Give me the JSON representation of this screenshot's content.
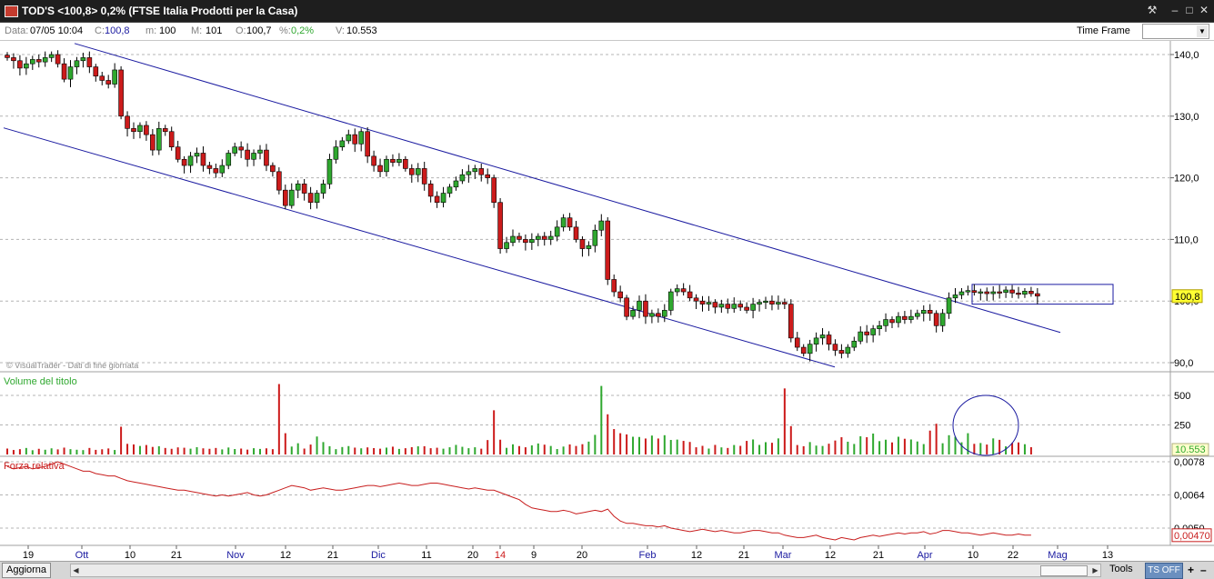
{
  "window": {
    "title": "TOD'S <100,8> 0,2%  (FTSE Italia Prodotti per la Casa)",
    "buttons": {
      "tools": "⚒",
      "minimize": "–",
      "restore": "□",
      "close": "✕"
    }
  },
  "infobar": {
    "data_label": "Data:",
    "data_value": "07/05 10:04",
    "c_label": "C:",
    "c_value": "100,8",
    "m_label": "m:",
    "m_value": "100",
    "M_label": "M:",
    "M_value": "101",
    "o_label": "O:",
    "o_value": "100,7",
    "pct_label": "%:",
    "pct_value": "0,2%",
    "v_label": "V:",
    "v_value": "10.553",
    "timeframe_label": "Time Frame",
    "timeframe_value": ""
  },
  "colors": {
    "up": "#2fa82f",
    "down": "#cc1b1b",
    "channel": "#1a1aa0",
    "price_tag_bg": "#ffff33",
    "volume_tag_bg": "#ffffcc",
    "strength": "#c81e1e"
  },
  "bottombar": {
    "update_button": "Aggiorna",
    "tools_label": "Tools",
    "ts_button": "TS OFF",
    "zoom_in": "+",
    "zoom_out": "–"
  },
  "chart_data": [
    {
      "type": "candlestick",
      "title": "",
      "y_axis_labels": [
        "140,0",
        "130,0",
        "120,0",
        "110,0",
        "100,0",
        "90,0"
      ],
      "ylim": [
        88,
        142
      ],
      "last_price_tag": "100,8",
      "watermark": "VisualTrader - Dati di fine giornata",
      "x_axis_labels": [
        {
          "label": "19",
          "month": false,
          "highlight": false
        },
        {
          "label": "Ott",
          "month": true,
          "highlight": false
        },
        {
          "label": "10",
          "month": false,
          "highlight": false
        },
        {
          "label": "21",
          "month": false,
          "highlight": false
        },
        {
          "label": "Nov",
          "month": true,
          "highlight": false
        },
        {
          "label": "12",
          "month": false,
          "highlight": false
        },
        {
          "label": "21",
          "month": false,
          "highlight": false
        },
        {
          "label": "Dic",
          "month": true,
          "highlight": false
        },
        {
          "label": "11",
          "month": false,
          "highlight": false
        },
        {
          "label": "20",
          "month": false,
          "highlight": false
        },
        {
          "label": "14",
          "month": false,
          "highlight": true
        },
        {
          "label": "9",
          "month": false,
          "highlight": false
        },
        {
          "label": "20",
          "month": false,
          "highlight": false
        },
        {
          "label": "Feb",
          "month": true,
          "highlight": false
        },
        {
          "label": "12",
          "month": false,
          "highlight": false
        },
        {
          "label": "21",
          "month": false,
          "highlight": false
        },
        {
          "label": "Mar",
          "month": true,
          "highlight": false
        },
        {
          "label": "12",
          "month": false,
          "highlight": false
        },
        {
          "label": "21",
          "month": false,
          "highlight": false
        },
        {
          "label": "Apr",
          "month": true,
          "highlight": false
        },
        {
          "label": "10",
          "month": false,
          "highlight": false
        },
        {
          "label": "22",
          "month": false,
          "highlight": false
        },
        {
          "label": "Mag",
          "month": true,
          "highlight": false
        },
        {
          "label": "13",
          "month": false,
          "highlight": false
        }
      ],
      "closes": [
        139.5,
        139,
        137.8,
        138.5,
        139.2,
        138.8,
        139.5,
        140,
        138.5,
        136,
        138,
        139,
        139.5,
        138,
        136.5,
        135.8,
        135.2,
        137.5,
        130,
        128,
        127.5,
        128.5,
        127,
        124.5,
        128,
        127.5,
        125,
        123,
        122,
        123.5,
        124,
        122,
        121.5,
        120.8,
        122,
        124,
        125,
        124.5,
        123,
        124,
        124.5,
        122,
        121,
        118,
        115.5,
        118,
        119,
        117.5,
        116,
        117.5,
        119,
        123,
        125,
        126,
        127,
        125.5,
        127.5,
        123.5,
        122,
        121,
        123,
        122.5,
        123,
        121.5,
        120.5,
        121.5,
        119,
        117,
        116,
        117.5,
        118.5,
        119.5,
        120.5,
        121,
        121.5,
        120.5,
        120,
        116,
        108.5,
        109.5,
        110.5,
        110,
        109.5,
        110,
        110.5,
        110,
        110.5,
        112,
        113.5,
        112,
        110,
        108.5,
        109,
        111.5,
        113,
        103.5,
        101.5,
        100.5,
        97.5,
        98.5,
        100,
        97.5,
        98,
        97.5,
        98.5,
        101.5,
        102,
        101.5,
        100.5,
        100,
        99.5,
        99.8,
        99,
        99.5,
        98.8,
        99.5,
        99,
        98.5,
        99.5,
        99.8,
        100,
        99.5,
        99.8,
        99.5,
        94,
        92.5,
        91.5,
        93,
        94,
        94.5,
        93,
        92,
        91.5,
        92.5,
        93.5,
        95,
        94.5,
        95.5,
        96,
        97,
        96.5,
        97.5,
        97,
        97.5,
        98,
        98.5,
        98,
        96,
        98,
        100.5,
        101,
        101.5,
        101.7,
        101.4,
        101.5,
        101.2,
        101.5,
        101.4,
        101.8,
        101.3,
        101.1,
        101.6,
        101.2,
        100.8
      ],
      "volumes": [
        50,
        38,
        45,
        55,
        36,
        48,
        40,
        52,
        43,
        58,
        45,
        40,
        37,
        55,
        39,
        44,
        51,
        38,
        235,
        90,
        85,
        72,
        80,
        64,
        70,
        55,
        48,
        60,
        57,
        49,
        62,
        52,
        48,
        55,
        43,
        59,
        46,
        50,
        41,
        53,
        47,
        52,
        45,
        596,
        180,
        67,
        95,
        50,
        84,
        152,
        105,
        70,
        45,
        63,
        71,
        58,
        52,
        60,
        54,
        49,
        58,
        66,
        47,
        53,
        62,
        69,
        70,
        53,
        57,
        49,
        61,
        81,
        65,
        53,
        61,
        49,
        122,
        374,
        125,
        56,
        86,
        71,
        61,
        77,
        93,
        83,
        72,
        46,
        67,
        85,
        72,
        87,
        109,
        166,
        580,
        340,
        215,
        180,
        170,
        150,
        148,
        135,
        160,
        135,
        163,
        123,
        126,
        115,
        106,
        61,
        73,
        50,
        81,
        60,
        55,
        80,
        73,
        115,
        127,
        81,
        104,
        99,
        136,
        559,
        240,
        80,
        70,
        105,
        75,
        72,
        91,
        118,
        146,
        108,
        89,
        154,
        146,
        177,
        113,
        125,
        102,
        150,
        133,
        127,
        110,
        88,
        202,
        260,
        95,
        163,
        150,
        103,
        180,
        90,
        97,
        84,
        136,
        124,
        69,
        97,
        102,
        87,
        62
      ],
      "volume_label": "Volume del titolo",
      "volume_axis_labels": [
        "500",
        "250"
      ],
      "volume_tag": "10.553",
      "strength_label": "Forza relativa",
      "strength_axis_labels": [
        "0,0078",
        "0,0064",
        "0,0050"
      ],
      "strength_tag": "0,00470",
      "strength_values": [
        0.0076,
        0.0075,
        0.00755,
        0.0076,
        0.0075,
        0.00755,
        0.0076,
        0.0077,
        0.0078,
        0.0077,
        0.0076,
        0.0075,
        0.0074,
        0.0074,
        0.0073,
        0.00725,
        0.0072,
        0.0072,
        0.0071,
        0.007,
        0.00695,
        0.0069,
        0.00685,
        0.0068,
        0.00675,
        0.0067,
        0.00665,
        0.0066,
        0.0066,
        0.00655,
        0.0065,
        0.00645,
        0.0064,
        0.00635,
        0.0064,
        0.00635,
        0.0064,
        0.00645,
        0.0065,
        0.0064,
        0.00635,
        0.0064,
        0.0065,
        0.0066,
        0.0067,
        0.0068,
        0.00675,
        0.0067,
        0.0066,
        0.00665,
        0.0067,
        0.00665,
        0.0066,
        0.0066,
        0.00665,
        0.0067,
        0.00675,
        0.0068,
        0.0068,
        0.00675,
        0.0068,
        0.00685,
        0.0069,
        0.00685,
        0.0068,
        0.0068,
        0.00685,
        0.0069,
        0.0069,
        0.00685,
        0.0068,
        0.00675,
        0.0067,
        0.00665,
        0.0067,
        0.00665,
        0.0066,
        0.0066,
        0.0065,
        0.0064,
        0.0063,
        0.0062,
        0.006,
        0.00585,
        0.0058,
        0.00575,
        0.0057,
        0.0057,
        0.00575,
        0.0057,
        0.0056,
        0.00565,
        0.0057,
        0.00575,
        0.0057,
        0.0058,
        0.0055,
        0.0053,
        0.0052,
        0.0052,
        0.00515,
        0.0051,
        0.0051,
        0.00505,
        0.0051,
        0.005,
        0.00495,
        0.0049,
        0.00485,
        0.0049,
        0.00495,
        0.0049,
        0.00485,
        0.0049,
        0.00485,
        0.0048,
        0.0048,
        0.00485,
        0.0049,
        0.0049,
        0.00485,
        0.0048,
        0.0048,
        0.0047,
        0.00465,
        0.0046,
        0.0046,
        0.00465,
        0.0047,
        0.0046,
        0.00455,
        0.0045,
        0.0046,
        0.00455,
        0.0045,
        0.0046,
        0.00465,
        0.0047,
        0.00465,
        0.0047,
        0.00475,
        0.0048,
        0.00475,
        0.0048,
        0.0048,
        0.00485,
        0.00475,
        0.0048,
        0.0049,
        0.0049,
        0.00485,
        0.0048,
        0.0048,
        0.00475,
        0.0047,
        0.00475,
        0.0048,
        0.00475,
        0.0047,
        0.0047,
        0.00475,
        0.0047,
        0.0047
      ]
    }
  ]
}
